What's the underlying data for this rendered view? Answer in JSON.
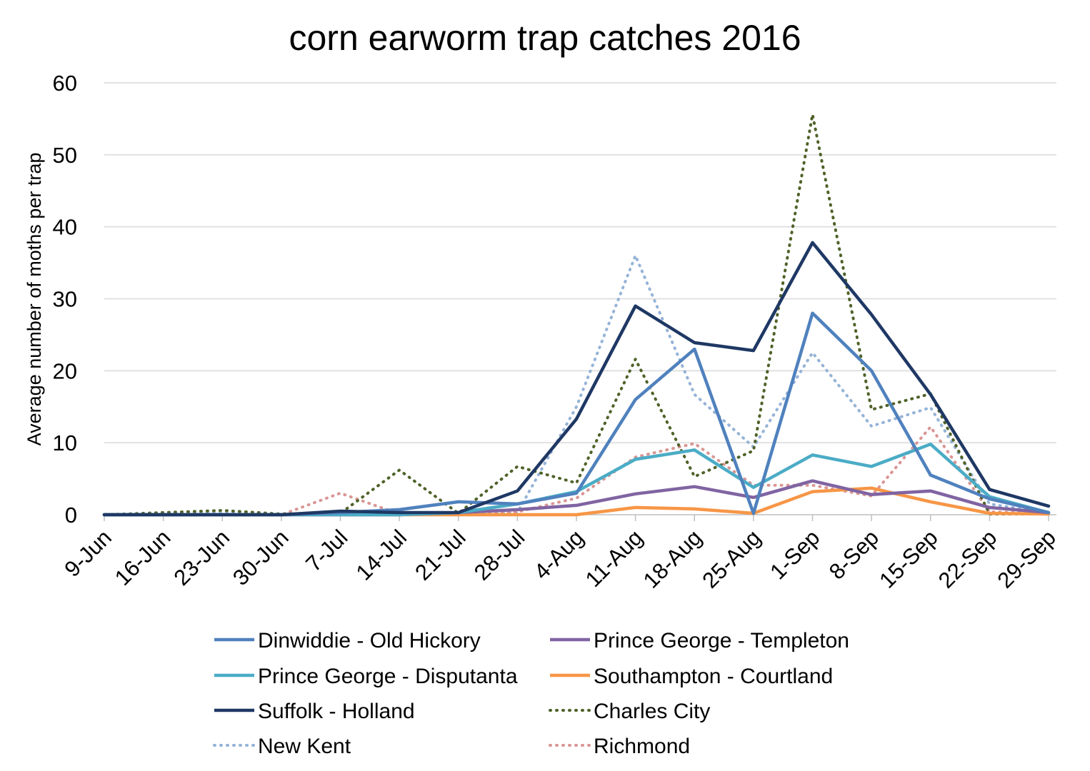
{
  "chart_data": {
    "type": "line",
    "title": "corn earworm trap catches 2016",
    "xlabel": "",
    "ylabel": "Average number of moths per trap",
    "ylim": [
      0,
      60
    ],
    "yticks": [
      "0",
      "10",
      "20",
      "30",
      "40",
      "50",
      "60"
    ],
    "categories": [
      "9-Jun",
      "16-Jun",
      "23-Jun",
      "30-Jun",
      "7-Jul",
      "14-Jul",
      "21-Jul",
      "28-Jul",
      "4-Aug",
      "11-Aug",
      "18-Aug",
      "25-Aug",
      "1-Sep",
      "8-Sep",
      "15-Sep",
      "22-Sep",
      "29-Sep"
    ],
    "grid": true,
    "legend_position": "bottom",
    "series": [
      {
        "name": "Dinwiddie - Old Hickory",
        "color": "#4f81bd",
        "style": "solid",
        "values": [
          0,
          0,
          0,
          0,
          0.3,
          0.7,
          1.8,
          1.5,
          3,
          16,
          23,
          0.2,
          28,
          20,
          5.5,
          2.2,
          0.3
        ]
      },
      {
        "name": "Prince George - Templeton",
        "color": "#8064a2",
        "style": "solid",
        "values": [
          0,
          0,
          0,
          0,
          0,
          0,
          0.3,
          0.7,
          1.3,
          2.9,
          3.9,
          2.4,
          4.7,
          2.8,
          3.3,
          1,
          0.3
        ]
      },
      {
        "name": "Prince George - Disputanta",
        "color": "#4bacc6",
        "style": "solid",
        "values": [
          0,
          0,
          0,
          0,
          0,
          0,
          0.3,
          1.5,
          3.2,
          7.7,
          9,
          3.8,
          8.3,
          6.7,
          9.8,
          2.5,
          0.3
        ]
      },
      {
        "name": "Southampton - Courtland",
        "color": "#f79646",
        "style": "solid",
        "values": [
          0,
          0,
          0,
          0,
          0,
          0,
          0,
          0,
          0,
          1,
          0.8,
          0.2,
          3.2,
          3.7,
          1.8,
          0.2,
          0.1
        ]
      },
      {
        "name": "Suffolk - Holland",
        "color": "#1f3864",
        "style": "solid",
        "values": [
          0,
          0,
          0,
          0,
          0.5,
          0.3,
          0.3,
          3.3,
          13.3,
          29,
          23.9,
          22.8,
          37.8,
          27.8,
          16.7,
          3.5,
          1.2
        ]
      },
      {
        "name": "Charles City",
        "color": "#4f6228",
        "style": "dotted",
        "values": [
          0,
          0.3,
          0.6,
          0.1,
          0.2,
          6.2,
          0.2,
          6.7,
          4.4,
          21.6,
          5.3,
          8.9,
          55.6,
          14.6,
          16.8,
          0.1,
          0.1
        ]
      },
      {
        "name": "New Kent",
        "color": "#95b3d7",
        "style": "dotted",
        "values": [
          0,
          0.2,
          0.2,
          0,
          0.3,
          0.2,
          0.1,
          0.3,
          15,
          36,
          16.7,
          9.4,
          22.5,
          12.3,
          14.9,
          1.5,
          0.2
        ]
      },
      {
        "name": "Richmond",
        "color": "#d99694",
        "style": "dotted",
        "values": [
          0,
          0,
          0,
          0,
          3,
          0.1,
          0.1,
          0.4,
          2.3,
          8,
          9.9,
          4.1,
          4.1,
          2.6,
          12.2,
          0.4,
          0.2
        ]
      }
    ]
  }
}
